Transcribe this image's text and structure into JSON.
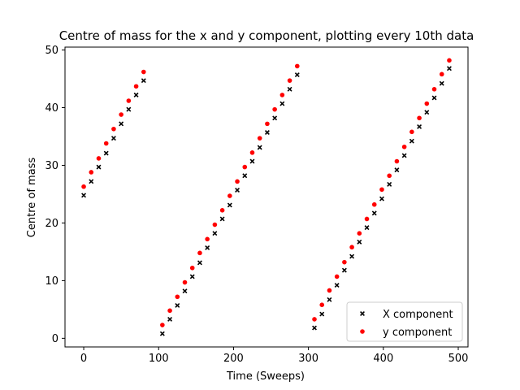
{
  "chart_data": {
    "type": "scatter",
    "title": "Centre of mass for the x and y component, plotting every 10th data",
    "xlabel": "Time (Sweeps)",
    "ylabel": "Centre of mass",
    "xlim": [
      -25,
      513
    ],
    "ylim": [
      -1.5,
      50.5
    ],
    "xticks": [
      0,
      100,
      200,
      300,
      400,
      500
    ],
    "yticks": [
      0,
      10,
      20,
      30,
      40,
      50
    ],
    "grid": false,
    "legend_position": "lower-right",
    "series": [
      {
        "name": "X component",
        "marker": "x",
        "color": "#000000",
        "points": [
          [
            0,
            24.8
          ],
          [
            10,
            27.2
          ],
          [
            20,
            29.7
          ],
          [
            30,
            32.1
          ],
          [
            40,
            34.7
          ],
          [
            50,
            37.2
          ],
          [
            60,
            39.7
          ],
          [
            70,
            42.2
          ],
          [
            80,
            44.7
          ],
          [
            105,
            0.8
          ],
          [
            115,
            3.3
          ],
          [
            125,
            5.7
          ],
          [
            135,
            8.2
          ],
          [
            145,
            10.7
          ],
          [
            155,
            13.1
          ],
          [
            165,
            15.7
          ],
          [
            175,
            18.2
          ],
          [
            185,
            20.7
          ],
          [
            195,
            23.1
          ],
          [
            205,
            25.7
          ],
          [
            215,
            28.2
          ],
          [
            225,
            30.7
          ],
          [
            235,
            33.1
          ],
          [
            245,
            35.7
          ],
          [
            255,
            38.2
          ],
          [
            265,
            40.7
          ],
          [
            275,
            43.2
          ],
          [
            285,
            45.7
          ],
          [
            308,
            1.8
          ],
          [
            318,
            4.2
          ],
          [
            328,
            6.7
          ],
          [
            338,
            9.2
          ],
          [
            348,
            11.8
          ],
          [
            358,
            14.2
          ],
          [
            368,
            16.7
          ],
          [
            378,
            19.2
          ],
          [
            388,
            21.7
          ],
          [
            398,
            24.2
          ],
          [
            408,
            26.7
          ],
          [
            418,
            29.2
          ],
          [
            428,
            31.7
          ],
          [
            438,
            34.2
          ],
          [
            448,
            36.7
          ],
          [
            458,
            39.2
          ],
          [
            468,
            41.7
          ],
          [
            478,
            44.2
          ],
          [
            488,
            46.8
          ]
        ]
      },
      {
        "name": "y component",
        "marker": "o",
        "color": "#ff0000",
        "points": [
          [
            0,
            26.3
          ],
          [
            10,
            28.8
          ],
          [
            20,
            31.2
          ],
          [
            30,
            33.8
          ],
          [
            40,
            36.3
          ],
          [
            50,
            38.8
          ],
          [
            60,
            41.2
          ],
          [
            70,
            43.7
          ],
          [
            80,
            46.2
          ],
          [
            105,
            2.3
          ],
          [
            115,
            4.8
          ],
          [
            125,
            7.2
          ],
          [
            135,
            9.7
          ],
          [
            145,
            12.2
          ],
          [
            155,
            14.8
          ],
          [
            165,
            17.2
          ],
          [
            175,
            19.7
          ],
          [
            185,
            22.2
          ],
          [
            195,
            24.7
          ],
          [
            205,
            27.2
          ],
          [
            215,
            29.7
          ],
          [
            225,
            32.2
          ],
          [
            235,
            34.7
          ],
          [
            245,
            37.2
          ],
          [
            255,
            39.7
          ],
          [
            265,
            42.2
          ],
          [
            275,
            44.7
          ],
          [
            285,
            47.2
          ],
          [
            308,
            3.3
          ],
          [
            318,
            5.8
          ],
          [
            328,
            8.3
          ],
          [
            338,
            10.7
          ],
          [
            348,
            13.2
          ],
          [
            358,
            15.8
          ],
          [
            368,
            18.2
          ],
          [
            378,
            20.7
          ],
          [
            388,
            23.2
          ],
          [
            398,
            25.8
          ],
          [
            408,
            28.2
          ],
          [
            418,
            30.7
          ],
          [
            428,
            33.2
          ],
          [
            438,
            35.8
          ],
          [
            448,
            38.2
          ],
          [
            458,
            40.7
          ],
          [
            468,
            43.2
          ],
          [
            478,
            45.8
          ],
          [
            488,
            48.2
          ]
        ]
      }
    ]
  }
}
